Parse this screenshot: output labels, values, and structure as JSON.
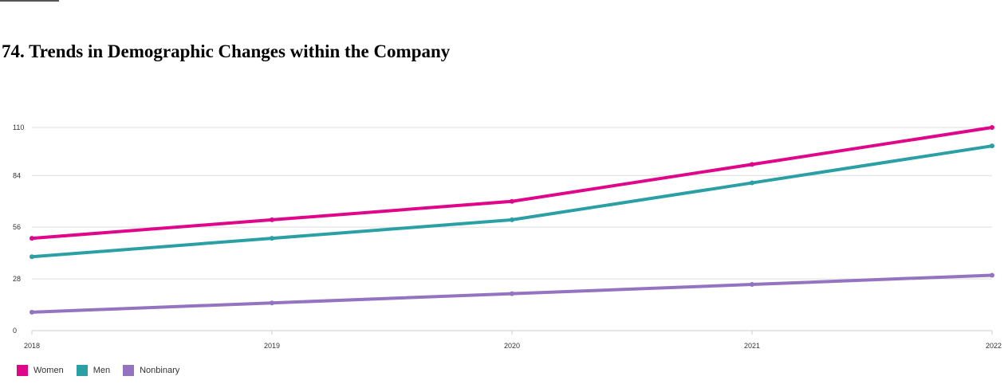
{
  "page": {
    "title": "74. Trends in Demographic Changes within the Company"
  },
  "chart_data": {
    "type": "line",
    "title": "",
    "xlabel": "",
    "ylabel": "",
    "categories": [
      "2018",
      "2019",
      "2020",
      "2021",
      "2022"
    ],
    "yticks": [
      "0",
      "28",
      "56",
      "84",
      "110"
    ],
    "ylim": [
      0,
      110
    ],
    "grid": true,
    "legend_position": "bottom-left",
    "series": [
      {
        "name": "Women",
        "color": "#e0068a",
        "values": [
          50,
          60,
          70,
          90,
          110
        ]
      },
      {
        "name": "Men",
        "color": "#2aa0a4",
        "values": [
          40,
          50,
          60,
          80,
          100
        ]
      },
      {
        "name": "Nonbinary",
        "color": "#9474c0",
        "values": [
          10,
          15,
          20,
          25,
          30
        ]
      }
    ]
  }
}
